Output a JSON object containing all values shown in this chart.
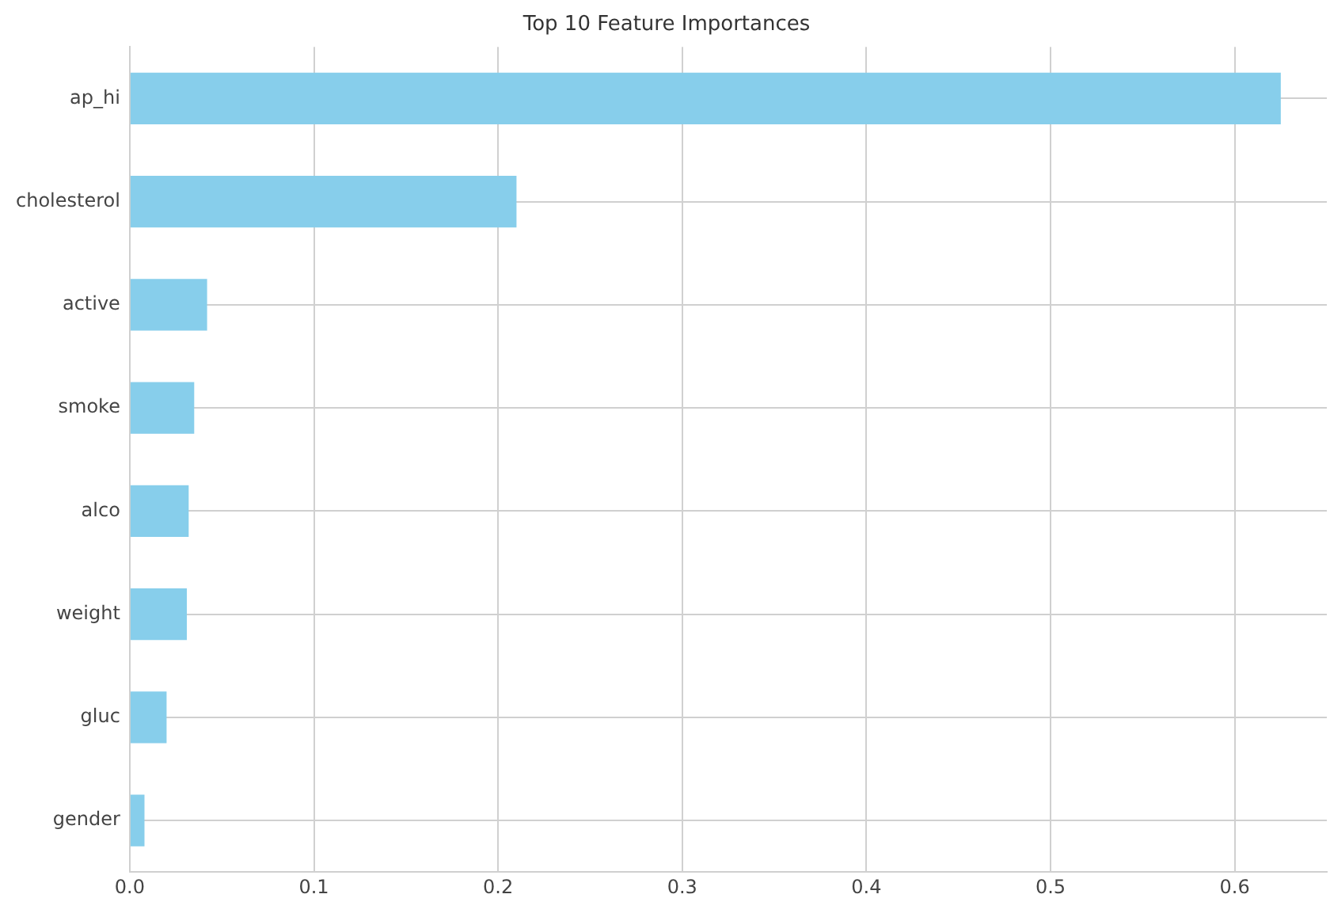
{
  "chart_data": {
    "type": "bar",
    "orientation": "horizontal",
    "title": "Top 10 Feature Importances",
    "categories": [
      "ap_hi",
      "cholesterol",
      "active",
      "smoke",
      "alco",
      "weight",
      "gluc",
      "gender"
    ],
    "values": [
      0.625,
      0.21,
      0.042,
      0.035,
      0.032,
      0.031,
      0.02,
      0.008
    ],
    "color": "#87ceeb",
    "xlim": [
      0,
      0.65
    ],
    "xticks": [
      {
        "value": 0,
        "label": "0.0"
      },
      0.1,
      0.2,
      0.3,
      0.4,
      0.5,
      0.6
    ],
    "grid": true
  }
}
